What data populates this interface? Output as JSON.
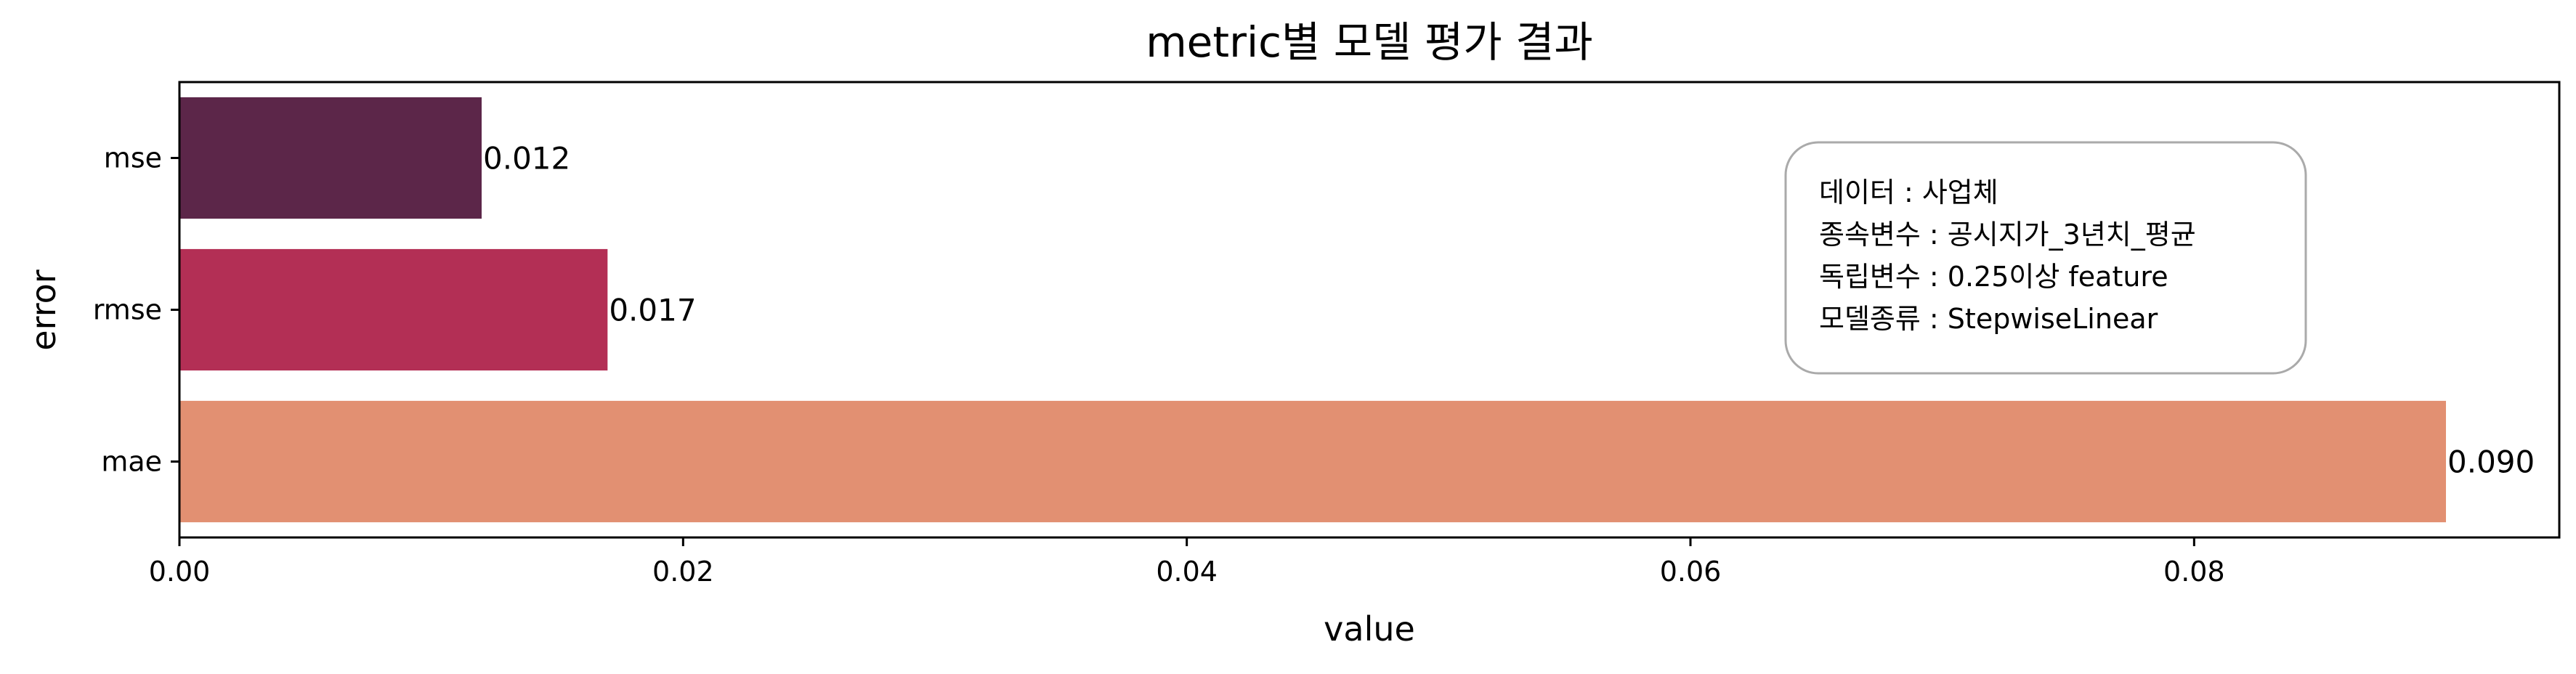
{
  "chart_data": {
    "type": "bar",
    "orientation": "horizontal",
    "title": "metric별 모델 평가 결과",
    "xlabel": "value",
    "ylabel": "error",
    "categories": [
      "mse",
      "rmse",
      "mae"
    ],
    "values": [
      0.012,
      0.017,
      0.09
    ],
    "data_labels": [
      "0.012",
      "0.017",
      "0.090"
    ],
    "colors": [
      "#5c2649",
      "#b32f55",
      "#e29072"
    ],
    "xlim": [
      0,
      0.0945
    ],
    "xticks": [
      0.0,
      0.02,
      0.04,
      0.06,
      0.08
    ],
    "xtick_labels": [
      "0.00",
      "0.02",
      "0.04",
      "0.06",
      "0.08"
    ],
    "grid": false,
    "annotation": {
      "lines": [
        "데이터 : 사업체",
        "종속변수 : 공시지가_3년치_평균",
        "독립변수 : 0.25이상 feature",
        "모델종류 : StepwiseLinear"
      ]
    }
  }
}
